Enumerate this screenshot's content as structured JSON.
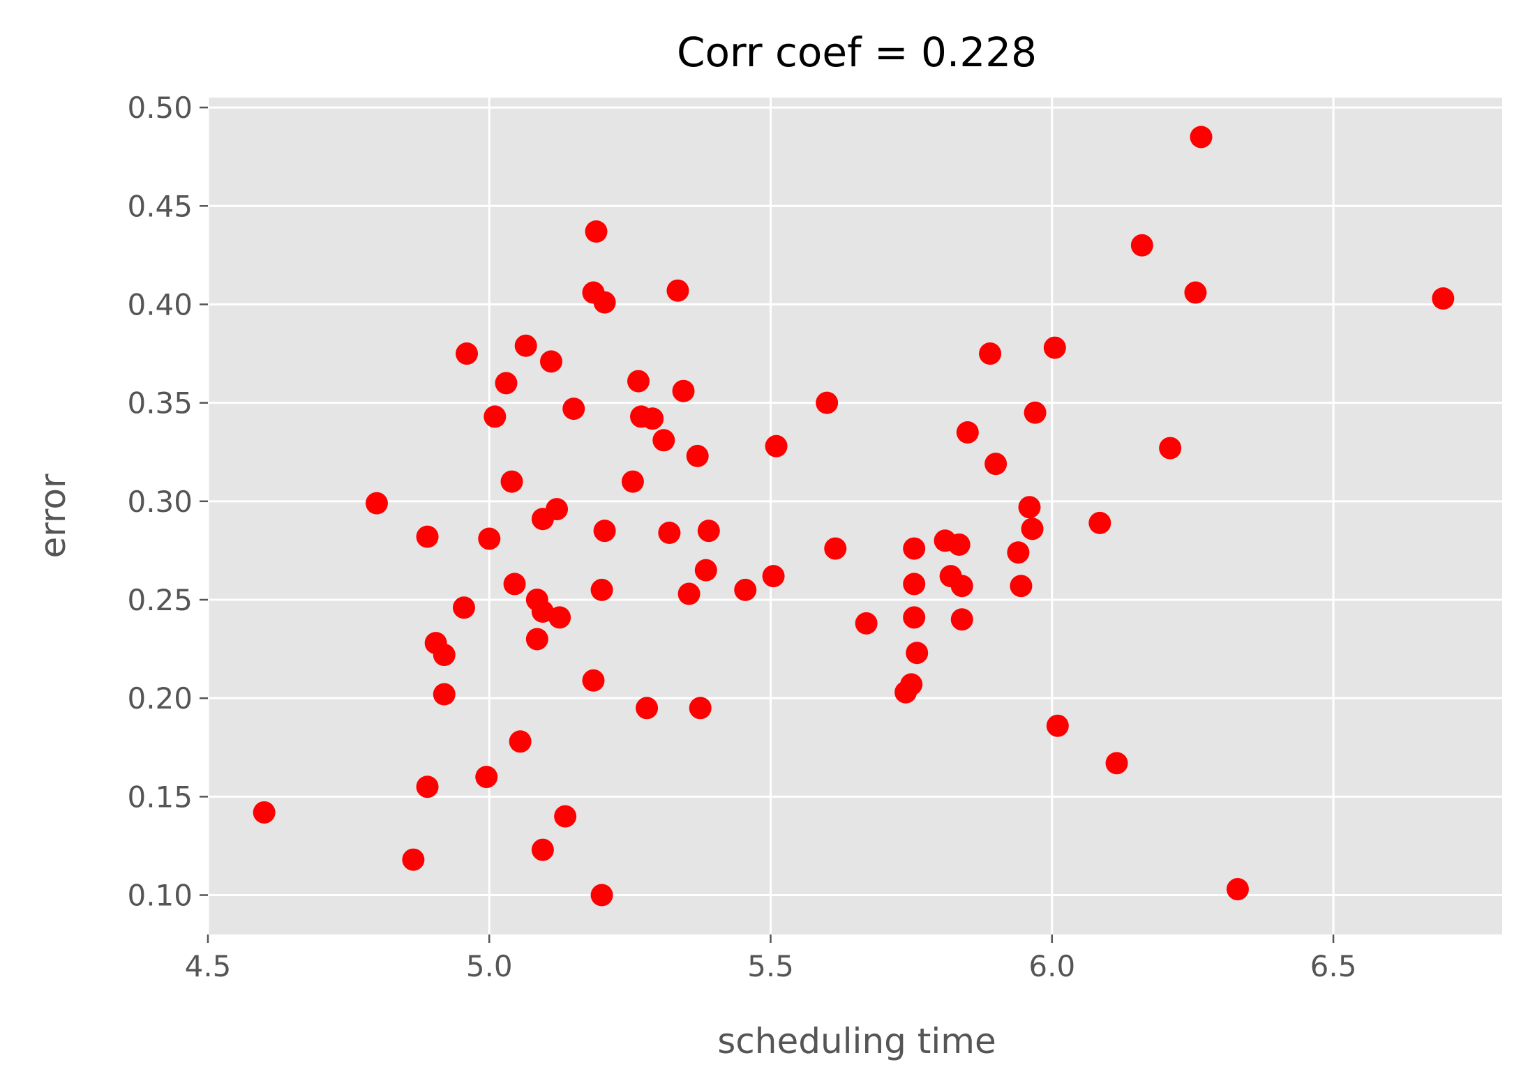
{
  "chart_data": {
    "type": "scatter",
    "title": "Corr coef = 0.228",
    "xlabel": "scheduling time",
    "ylabel": "error",
    "xlim": [
      4.5,
      6.8
    ],
    "ylim": [
      0.08,
      0.505
    ],
    "xticks": [
      "4.5",
      "5.0",
      "5.5",
      "6.0",
      "6.5"
    ],
    "yticks": [
      "0.10",
      "0.15",
      "0.20",
      "0.25",
      "0.30",
      "0.35",
      "0.40",
      "0.45",
      "0.50"
    ],
    "grid": true,
    "style": "ggplot",
    "background_color": "#e5e5e5",
    "marker_color": "#ff0000",
    "points": [
      [
        4.6,
        0.142
      ],
      [
        4.8,
        0.299
      ],
      [
        4.865,
        0.118
      ],
      [
        4.89,
        0.155
      ],
      [
        4.89,
        0.282
      ],
      [
        4.905,
        0.228
      ],
      [
        4.92,
        0.202
      ],
      [
        4.92,
        0.222
      ],
      [
        4.955,
        0.246
      ],
      [
        4.96,
        0.375
      ],
      [
        4.995,
        0.16
      ],
      [
        5.0,
        0.281
      ],
      [
        5.01,
        0.343
      ],
      [
        5.03,
        0.36
      ],
      [
        5.04,
        0.31
      ],
      [
        5.045,
        0.258
      ],
      [
        5.055,
        0.178
      ],
      [
        5.065,
        0.379
      ],
      [
        5.085,
        0.25
      ],
      [
        5.085,
        0.23
      ],
      [
        5.095,
        0.291
      ],
      [
        5.095,
        0.244
      ],
      [
        5.095,
        0.123
      ],
      [
        5.11,
        0.371
      ],
      [
        5.12,
        0.296
      ],
      [
        5.125,
        0.241
      ],
      [
        5.135,
        0.14
      ],
      [
        5.15,
        0.347
      ],
      [
        5.185,
        0.406
      ],
      [
        5.185,
        0.209
      ],
      [
        5.19,
        0.437
      ],
      [
        5.2,
        0.255
      ],
      [
        5.2,
        0.1
      ],
      [
        5.205,
        0.401
      ],
      [
        5.205,
        0.285
      ],
      [
        5.255,
        0.31
      ],
      [
        5.265,
        0.361
      ],
      [
        5.27,
        0.343
      ],
      [
        5.28,
        0.195
      ],
      [
        5.29,
        0.342
      ],
      [
        5.31,
        0.331
      ],
      [
        5.32,
        0.284
      ],
      [
        5.335,
        0.407
      ],
      [
        5.345,
        0.356
      ],
      [
        5.355,
        0.253
      ],
      [
        5.37,
        0.323
      ],
      [
        5.375,
        0.195
      ],
      [
        5.385,
        0.265
      ],
      [
        5.39,
        0.285
      ],
      [
        5.455,
        0.255
      ],
      [
        5.505,
        0.262
      ],
      [
        5.51,
        0.328
      ],
      [
        5.6,
        0.35
      ],
      [
        5.615,
        0.276
      ],
      [
        5.67,
        0.238
      ],
      [
        5.74,
        0.203
      ],
      [
        5.75,
        0.207
      ],
      [
        5.755,
        0.258
      ],
      [
        5.755,
        0.276
      ],
      [
        5.755,
        0.241
      ],
      [
        5.76,
        0.223
      ],
      [
        5.81,
        0.28
      ],
      [
        5.82,
        0.262
      ],
      [
        5.835,
        0.278
      ],
      [
        5.84,
        0.257
      ],
      [
        5.84,
        0.24
      ],
      [
        5.85,
        0.335
      ],
      [
        5.89,
        0.375
      ],
      [
        5.9,
        0.319
      ],
      [
        5.94,
        0.274
      ],
      [
        5.945,
        0.257
      ],
      [
        5.96,
        0.297
      ],
      [
        5.965,
        0.286
      ],
      [
        5.97,
        0.345
      ],
      [
        6.005,
        0.378
      ],
      [
        6.01,
        0.186
      ],
      [
        6.085,
        0.289
      ],
      [
        6.115,
        0.167
      ],
      [
        6.16,
        0.43
      ],
      [
        6.21,
        0.327
      ],
      [
        6.255,
        0.406
      ],
      [
        6.265,
        0.485
      ],
      [
        6.33,
        0.103
      ],
      [
        6.695,
        0.403
      ]
    ]
  }
}
